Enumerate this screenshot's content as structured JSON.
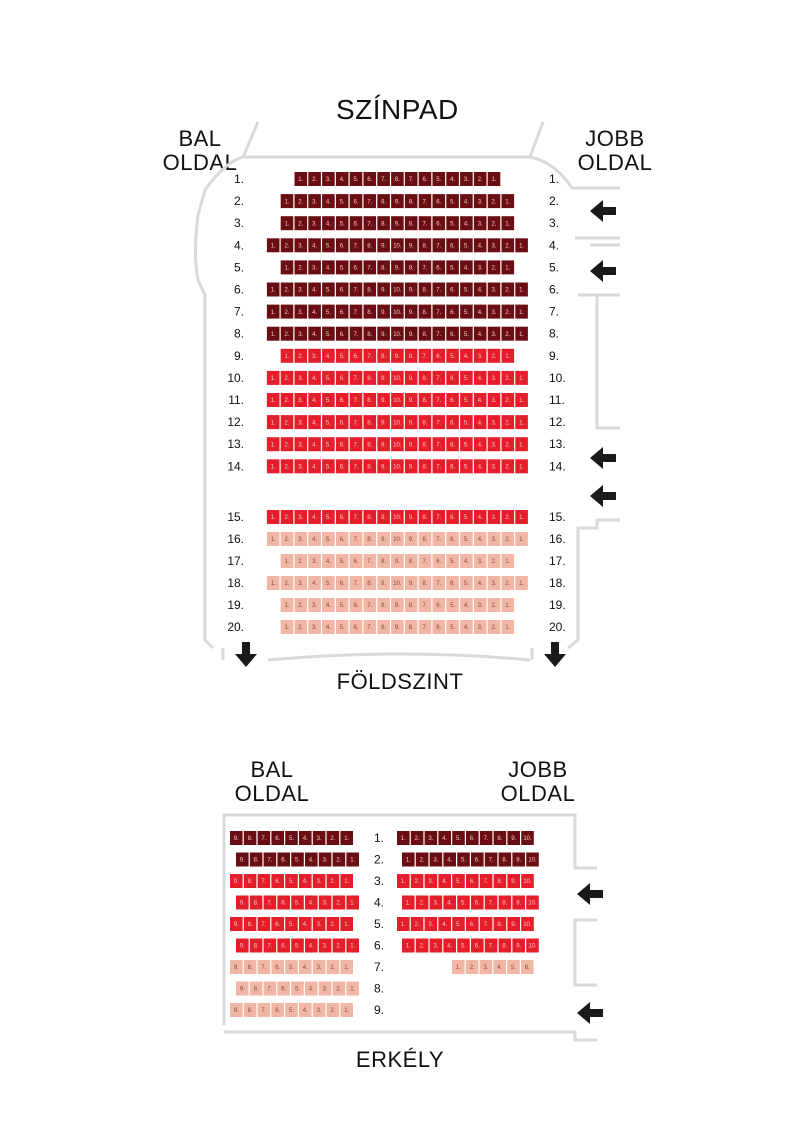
{
  "floor": {
    "stage": "SZÍNPAD",
    "left_side": [
      "BAL",
      "OLDAL"
    ],
    "right_side": [
      "JOBB",
      "OLDAL"
    ],
    "level_name": "FÖLDSZINT",
    "rows": [
      {
        "label": "1.",
        "seats": [
          "1.",
          "2.",
          "3.",
          "4.",
          "5.",
          "6.",
          "7.",
          "8.",
          "7.",
          "6.",
          "5.",
          "4.",
          "3.",
          "2.",
          "1."
        ],
        "tier": "premium"
      },
      {
        "label": "2.",
        "seats": [
          "1.",
          "2.",
          "3.",
          "4.",
          "5.",
          "6.",
          "7.",
          "8.",
          "9.",
          "8.",
          "7.",
          "6.",
          "5.",
          "4.",
          "3.",
          "2.",
          "1."
        ],
        "tier": "premium"
      },
      {
        "label": "3.",
        "seats": [
          "1.",
          "2.",
          "3.",
          "4.",
          "5.",
          "6.",
          "7.",
          "8.",
          "9.",
          "8.",
          "7.",
          "6.",
          "5.",
          "4.",
          "3.",
          "2.",
          "1."
        ],
        "tier": "premium"
      },
      {
        "label": "4.",
        "seats": [
          "1.",
          "2.",
          "3.",
          "4.",
          "5.",
          "6.",
          "7.",
          "8.",
          "9.",
          "10.",
          "9.",
          "8.",
          "7.",
          "6.",
          "5.",
          "4.",
          "3.",
          "2.",
          "1."
        ],
        "tier": "premium"
      },
      {
        "label": "5.",
        "seats": [
          "1.",
          "2.",
          "3.",
          "4.",
          "5.",
          "6.",
          "7.",
          "8.",
          "9.",
          "8.",
          "7.",
          "6.",
          "5.",
          "4.",
          "3.",
          "2.",
          "1."
        ],
        "tier": "premium"
      },
      {
        "label": "6.",
        "seats": [
          "1.",
          "2.",
          "3.",
          "4.",
          "5.",
          "6.",
          "7.",
          "8.",
          "9.",
          "10.",
          "9.",
          "8.",
          "7.",
          "6.",
          "5.",
          "4.",
          "3.",
          "2.",
          "1."
        ],
        "tier": "premium"
      },
      {
        "label": "7.",
        "seats": [
          "1.",
          "2.",
          "3.",
          "4.",
          "5.",
          "6.",
          "7.",
          "8.",
          "9.",
          "10.",
          "9.",
          "8.",
          "7.",
          "6.",
          "5.",
          "4.",
          "3.",
          "2.",
          "1."
        ],
        "tier": "premium"
      },
      {
        "label": "8.",
        "seats": [
          "1.",
          "2.",
          "3.",
          "4.",
          "5.",
          "6.",
          "7.",
          "8.",
          "9.",
          "10.",
          "9.",
          "8.",
          "7.",
          "6.",
          "5.",
          "4.",
          "3.",
          "2.",
          "1."
        ],
        "tier": "premium"
      },
      {
        "label": "9.",
        "seats": [
          "1.",
          "2.",
          "3.",
          "4.",
          "5.",
          "6.",
          "7.",
          "8.",
          "9.",
          "8.",
          "7.",
          "6.",
          "5.",
          "4.",
          "3.",
          "2.",
          "1."
        ],
        "tier": "standard"
      },
      {
        "label": "10.",
        "seats": [
          "1.",
          "2.",
          "3.",
          "4.",
          "5.",
          "6.",
          "7.",
          "8.",
          "9.",
          "10.",
          "9.",
          "8.",
          "7.",
          "6.",
          "5.",
          "4.",
          "3.",
          "2.",
          "1."
        ],
        "tier": "standard"
      },
      {
        "label": "11.",
        "seats": [
          "1.",
          "2.",
          "3.",
          "4.",
          "5.",
          "6.",
          "7.",
          "8.",
          "9.",
          "10.",
          "9.",
          "8.",
          "7.",
          "6.",
          "5.",
          "4.",
          "3.",
          "2.",
          "1."
        ],
        "tier": "standard"
      },
      {
        "label": "12.",
        "seats": [
          "1.",
          "2.",
          "3.",
          "4.",
          "5.",
          "6.",
          "7.",
          "8.",
          "9.",
          "10.",
          "9.",
          "8.",
          "7.",
          "6.",
          "5.",
          "4.",
          "3.",
          "2.",
          "1."
        ],
        "tier": "standard"
      },
      {
        "label": "13.",
        "seats": [
          "1.",
          "2.",
          "3.",
          "4.",
          "5.",
          "6.",
          "7.",
          "8.",
          "9.",
          "10.",
          "9.",
          "8.",
          "7.",
          "6.",
          "5.",
          "4.",
          "3.",
          "2.",
          "1."
        ],
        "tier": "standard"
      },
      {
        "label": "14.",
        "seats": [
          "1.",
          "2.",
          "3.",
          "4.",
          "5.",
          "6.",
          "7.",
          "8.",
          "9.",
          "10.",
          "9.",
          "8.",
          "7.",
          "6.",
          "5.",
          "4.",
          "3.",
          "2.",
          "1."
        ],
        "tier": "standard"
      },
      {
        "label": "15.",
        "seats": [
          "1.",
          "2.",
          "3.",
          "4.",
          "5.",
          "6.",
          "7.",
          "8.",
          "9.",
          "10.",
          "9.",
          "8.",
          "7.",
          "6.",
          "5.",
          "4.",
          "3.",
          "2.",
          "1."
        ],
        "tier": "standard"
      },
      {
        "label": "16.",
        "seats": [
          "1.",
          "2.",
          "3.",
          "4.",
          "5.",
          "6.",
          "7.",
          "8.",
          "9.",
          "10.",
          "9.",
          "8.",
          "7.",
          "6.",
          "5.",
          "4.",
          "3.",
          "2.",
          "1."
        ],
        "tier": "economy"
      },
      {
        "label": "17.",
        "seats": [
          "1.",
          "2.",
          "3.",
          "4.",
          "5.",
          "6.",
          "7.",
          "8.",
          "9.",
          "8.",
          "7.",
          "6.",
          "5.",
          "4.",
          "3.",
          "2.",
          "1."
        ],
        "tier": "economy"
      },
      {
        "label": "18.",
        "seats": [
          "1.",
          "2.",
          "3.",
          "4.",
          "5.",
          "6.",
          "7.",
          "8.",
          "9.",
          "10.",
          "9.",
          "8.",
          "7.",
          "6.",
          "5.",
          "4.",
          "3.",
          "2.",
          "1."
        ],
        "tier": "economy"
      },
      {
        "label": "19.",
        "seats": [
          "1.",
          "2.",
          "3.",
          "4.",
          "5.",
          "6.",
          "7.",
          "8.",
          "9.",
          "8.",
          "7.",
          "6.",
          "5.",
          "4.",
          "3.",
          "2.",
          "1."
        ],
        "tier": "economy"
      },
      {
        "label": "20.",
        "seats": [
          "1.",
          "2.",
          "3.",
          "4.",
          "5.",
          "6.",
          "7.",
          "8.",
          "9.",
          "8.",
          "7.",
          "6.",
          "5.",
          "4.",
          "3.",
          "2.",
          "1."
        ],
        "tier": "economy"
      }
    ]
  },
  "balcony": {
    "left_side": [
      "BAL",
      "OLDAL"
    ],
    "right_side": [
      "JOBB",
      "OLDAL"
    ],
    "level_name": "ERKÉLY",
    "rows": [
      {
        "label": "1.",
        "left": [
          "9.",
          "8.",
          "7.",
          "6.",
          "5.",
          "4.",
          "3.",
          "2.",
          "1."
        ],
        "right": [
          "1.",
          "2.",
          "3.",
          "4.",
          "5.",
          "6.",
          "7.",
          "8.",
          "9.",
          "10."
        ],
        "tier": "premium"
      },
      {
        "label": "2.",
        "left": [
          "9.",
          "8.",
          "7.",
          "6.",
          "5.",
          "4.",
          "3.",
          "2.",
          "1."
        ],
        "right": [
          "1.",
          "2.",
          "3.",
          "4.",
          "5.",
          "6.",
          "7.",
          "8.",
          "9.",
          "10."
        ],
        "tier": "premium"
      },
      {
        "label": "3.",
        "left": [
          "9.",
          "8.",
          "7.",
          "6.",
          "5.",
          "4.",
          "3.",
          "2.",
          "1."
        ],
        "right": [
          "1.",
          "2.",
          "3.",
          "4.",
          "5.",
          "6.",
          "7.",
          "8.",
          "9.",
          "10."
        ],
        "tier": "standard"
      },
      {
        "label": "4.",
        "left": [
          "9.",
          "8.",
          "7.",
          "6.",
          "5.",
          "4.",
          "3.",
          "2.",
          "1."
        ],
        "right": [
          "1.",
          "2.",
          "3.",
          "4.",
          "5.",
          "6.",
          "7.",
          "8.",
          "9.",
          "10."
        ],
        "tier": "standard"
      },
      {
        "label": "5.",
        "left": [
          "9.",
          "8.",
          "7.",
          "6.",
          "5.",
          "4.",
          "3.",
          "2.",
          "1."
        ],
        "right": [
          "1.",
          "2.",
          "3.",
          "4.",
          "5.",
          "6.",
          "7.",
          "8.",
          "9.",
          "10."
        ],
        "tier": "standard"
      },
      {
        "label": "6.",
        "left": [
          "9.",
          "8.",
          "7.",
          "6.",
          "5.",
          "4.",
          "3.",
          "2.",
          "1."
        ],
        "right": [
          "1.",
          "2.",
          "3.",
          "4.",
          "5.",
          "6.",
          "7.",
          "8.",
          "9.",
          "10."
        ],
        "tier": "standard"
      },
      {
        "label": "7.",
        "left": [
          "9.",
          "8.",
          "7.",
          "6.",
          "5.",
          "4.",
          "3.",
          "2.",
          "1."
        ],
        "right": [
          "1.",
          "2.",
          "3.",
          "4.",
          "5.",
          "6."
        ],
        "tier": "economy"
      },
      {
        "label": "8.",
        "left": [
          "9.",
          "8.",
          "7.",
          "6.",
          "5.",
          "4.",
          "3.",
          "2.",
          "1."
        ],
        "right": [],
        "tier": "economy"
      },
      {
        "label": "9.",
        "left": [
          "9.",
          "8.",
          "7.",
          "6.",
          "5.",
          "4.",
          "3.",
          "2.",
          "1."
        ],
        "right": [],
        "tier": "economy"
      }
    ]
  },
  "colors": {
    "premium": "#6b0e14",
    "standard": "#e41f2b",
    "economy": "#f2b7a4",
    "outline": "#d9d9d9",
    "text": "#111111",
    "seat_text_dark": "#f5c9c9",
    "seat_text_light": "#7a4a40"
  }
}
